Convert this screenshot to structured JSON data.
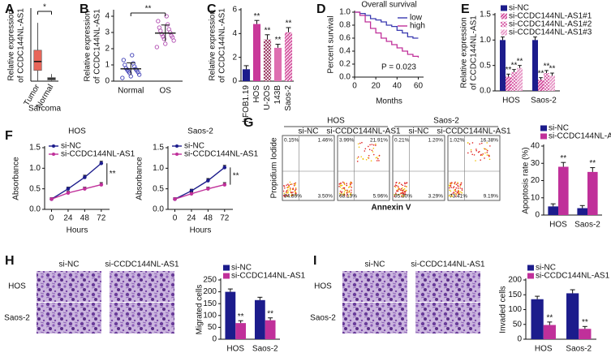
{
  "chart_data": [
    {
      "panel": "A",
      "type": "box",
      "ylabel": [
        "Relative expression",
        "of CCDC144NL-AS1"
      ],
      "xlabel": "Sarcoma",
      "categories": [
        "Tumor",
        "Normal"
      ],
      "colors": [
        "#e8665a",
        "#9e9e9e"
      ],
      "boxes": [
        {
          "min": 0,
          "q1": 1.8,
          "median": 3.3,
          "q3": 5.2,
          "max": 9.8
        },
        {
          "min": 0,
          "q1": 0.2,
          "median": 0.4,
          "q3": 0.6,
          "max": 1.2
        }
      ],
      "ylim": [
        0,
        12
      ],
      "annotation": "*"
    },
    {
      "panel": "B",
      "type": "dot",
      "ylabel": [
        "Relative expression",
        "of CCDC144NL-AS1"
      ],
      "categories": [
        "Normal",
        "OS"
      ],
      "colors": [
        "#3b3bb5",
        "#b04ab0"
      ],
      "points": [
        [
          0.2,
          0.3,
          0.4,
          0.5,
          0.55,
          0.6,
          0.65,
          0.7,
          0.75,
          0.8,
          0.9,
          1.0,
          1.1,
          1.3,
          1.6
        ],
        [
          2.1,
          2.3,
          2.5,
          2.6,
          2.7,
          2.75,
          2.8,
          2.9,
          3.0,
          3.1,
          3.2,
          3.3,
          3.5,
          3.7,
          4.0
        ]
      ],
      "values": [
        0.76,
        2.96
      ],
      "errors": [
        0.37,
        0.5
      ],
      "ylim": [
        0,
        4.3
      ],
      "yticks": [
        0,
        1,
        2,
        3,
        4
      ],
      "annotation": "**"
    },
    {
      "panel": "C",
      "type": "bar",
      "ylabel": [
        "Relative expression",
        "of CCDC144NL-AS1"
      ],
      "categories": [
        "hFOB1.19",
        "HOS",
        "U-2OS",
        "143B",
        "Saos-2"
      ],
      "series": [
        {
          "values": [
            1.0,
            4.8,
            3.5,
            2.8,
            4.1
          ],
          "errors": [
            0.3,
            0.3,
            0.4,
            0.3,
            0.4
          ],
          "colors": [
            "#1c1c8c",
            "#c9399a",
            "#8b1a4a",
            "#de6fb0",
            "#d65ba3"
          ],
          "hatch": [
            null,
            null,
            "cross",
            null,
            "diag"
          ],
          "annotations": [
            null,
            "**",
            "**",
            "**",
            "**"
          ]
        }
      ],
      "ylim": [
        0,
        6
      ],
      "yticks": [
        0,
        2,
        4,
        6
      ]
    },
    {
      "panel": "D",
      "type": "survival",
      "title": "Overall survival",
      "ylabel": "Percent survival",
      "xlabel": "Months",
      "xlim": [
        0,
        65
      ],
      "xticks": [
        0,
        20,
        40,
        60
      ],
      "ylim": [
        0,
        1
      ],
      "yticks": [
        {
          "value": 0,
          "label": "0.0"
        },
        0.2,
        0.4,
        0.6,
        0.8,
        {
          "value": 1,
          "label": "1.0"
        }
      ],
      "x": [
        0,
        5,
        10,
        15,
        20,
        25,
        30,
        35,
        40,
        45,
        50,
        55,
        60
      ],
      "series": [
        {
          "name": "low",
          "color": "#3a3ab0",
          "values": [
            1,
            0.98,
            0.95,
            0.9,
            0.88,
            0.85,
            0.8,
            0.78,
            0.72,
            0.68,
            0.62,
            0.6,
            0.6
          ]
        },
        {
          "name": "high",
          "color": "#c0309a",
          "values": [
            1,
            0.95,
            0.85,
            0.75,
            0.68,
            0.6,
            0.55,
            0.5,
            0.45,
            0.4,
            0.35,
            0.32,
            0.3
          ]
        }
      ],
      "annotation": "P = 0.023"
    },
    {
      "panel": "E",
      "type": "bar",
      "ylabel": [
        "Relative expression",
        "of CCDC144NL-AS1"
      ],
      "categories": [
        "HOS",
        "Saos-2"
      ],
      "series": [
        {
          "name": "si-NC",
          "color": "#1c1c8c",
          "hatch": null,
          "values": [
            1.0,
            1.0
          ],
          "errors": [
            0.06,
            0.06
          ]
        },
        {
          "name": "si-CCDC144NL-AS1#1",
          "color": "#d4509f",
          "hatch": "diag",
          "values": [
            0.28,
            0.22
          ],
          "errors": [
            0.05,
            0.04
          ],
          "annotations": [
            "**",
            "**"
          ]
        },
        {
          "name": "si-CCDC144NL-AS1#2",
          "color": "#d4509f",
          "hatch": "cross",
          "values": [
            0.37,
            0.35
          ],
          "errors": [
            0.05,
            0.05
          ],
          "annotations": [
            "**",
            "**"
          ]
        },
        {
          "name": "si-CCDC144NL-AS1#3",
          "color": "#e89ac8",
          "hatch": "diag",
          "values": [
            0.45,
            0.3
          ],
          "errors": [
            0.05,
            0.05
          ],
          "annotations": [
            "**",
            "**"
          ]
        }
      ],
      "ylim": [
        0,
        1.5
      ],
      "yticks": [
        {
          "value": 0,
          "label": "0.0"
        },
        0.5,
        {
          "value": 1,
          "label": "1.0"
        },
        1.5
      ]
    },
    {
      "panel": "F",
      "type": "line",
      "title": "HOS",
      "ylabel": "Absorbance",
      "xlabel": "Hours",
      "x": [
        0,
        24,
        48,
        72
      ],
      "xlim": [
        -10,
        84
      ],
      "xticks": [
        0,
        24,
        48,
        72
      ],
      "ylim": [
        0,
        1.5
      ],
      "yticks": [
        {
          "value": 0,
          "label": "0.0"
        },
        0.5,
        {
          "value": 1,
          "label": "1.0"
        },
        1.5
      ],
      "series": [
        {
          "name": "si-NC",
          "color": "#1c1c8c",
          "values": [
            0.25,
            0.5,
            0.78,
            1.12
          ],
          "errors": [
            0.03,
            0.04,
            0.05,
            0.05
          ]
        },
        {
          "name": "si-CCDC144NL-AS1",
          "color": "#c0309a",
          "values": [
            0.25,
            0.4,
            0.5,
            0.6
          ],
          "errors": [
            0.03,
            0.04,
            0.04,
            0.05
          ]
        }
      ],
      "annotation": "**"
    },
    {
      "type": "line",
      "title": "Saos-2",
      "ylabel": "Absorbance",
      "xlabel": "Hours",
      "x": [
        0,
        24,
        48,
        72
      ],
      "xlim": [
        -10,
        84
      ],
      "xticks": [
        0,
        24,
        48,
        72
      ],
      "ylim": [
        0,
        1.5
      ],
      "yticks": [
        {
          "value": 0,
          "label": "0.0"
        },
        0.5,
        {
          "value": 1,
          "label": "1.0"
        },
        1.5
      ],
      "series": [
        {
          "name": "si-NC",
          "color": "#1c1c8c",
          "values": [
            0.25,
            0.45,
            0.7,
            1.02
          ],
          "errors": [
            0.03,
            0.04,
            0.05,
            0.05
          ]
        },
        {
          "name": "si-CCDC144NL-AS1",
          "color": "#c0309a",
          "values": [
            0.25,
            0.38,
            0.5,
            0.6
          ],
          "errors": [
            0.03,
            0.04,
            0.04,
            0.05
          ]
        }
      ],
      "annotation": "**"
    },
    {
      "type": "bar",
      "ylabel": "Apoptosis rate (%)",
      "categories": [
        "HOS",
        "Saos-2"
      ],
      "series": [
        {
          "name": "si-NC",
          "color": "#1c1c8c",
          "values": [
            5,
            4
          ],
          "errors": [
            1.5,
            1.5
          ]
        },
        {
          "name": "si-CCDC144NL-AS1",
          "color": "#c0309a",
          "values": [
            28,
            25
          ],
          "errors": [
            2.5,
            2.5
          ],
          "annotations": [
            "**",
            "**"
          ]
        }
      ],
      "ylim": [
        0,
        40
      ],
      "yticks": [
        0,
        10,
        20,
        30,
        40
      ]
    },
    {
      "type": "bar",
      "ylabel": "Migrated cells",
      "categories": [
        "HOS",
        "Saos-2"
      ],
      "series": [
        {
          "name": "si-NC",
          "color": "#1c1c8c",
          "values": [
            200,
            165
          ],
          "errors": [
            12,
            12
          ]
        },
        {
          "name": "si-CCDC144NL-AS1",
          "color": "#c0309a",
          "values": [
            68,
            80
          ],
          "errors": [
            10,
            10
          ],
          "annotations": [
            "**",
            "**"
          ]
        }
      ],
      "ylim": [
        0,
        250
      ],
      "yticks": [
        0,
        50,
        100,
        150,
        200,
        250
      ]
    },
    {
      "type": "bar",
      "ylabel": "Invaded cells",
      "categories": [
        "HOS",
        "Saos-2"
      ],
      "series": [
        {
          "name": "si-NC",
          "color": "#1c1c8c",
          "values": [
            135,
            155
          ],
          "errors": [
            10,
            12
          ]
        },
        {
          "name": "si-CCDC144NL-AS1",
          "color": "#c0309a",
          "values": [
            48,
            35
          ],
          "errors": [
            10,
            8
          ],
          "annotations": [
            "**",
            "**"
          ]
        }
      ],
      "ylim": [
        0,
        200
      ],
      "yticks": [
        0,
        50,
        100,
        150,
        200
      ]
    }
  ],
  "flow": {
    "panel": "G",
    "groups": [
      "HOS",
      "Saos-2"
    ],
    "conditions": [
      "si-NC",
      "si-CCDC144NL-AS1",
      "si-NC",
      "si-CCDC144NL-AS1"
    ],
    "quadrants": [
      [
        "0.15%",
        "1.46%",
        "94.89%",
        "3.50%"
      ],
      [
        "3.99%",
        "21.91%",
        "68.13%",
        "5.96%"
      ],
      [
        "0.21%",
        "1.20%",
        "95.30%",
        "3.29%"
      ],
      [
        "1.02%",
        "16.38%",
        "73.41%",
        "9.19%"
      ]
    ],
    "ylabel": "Propidium Iodide",
    "xlabel": "Annexin V"
  },
  "micrographs": [
    {
      "panel": "H",
      "columns": [
        "si-NC",
        "si-CCDC144NL-AS1"
      ],
      "rows": [
        "HOS",
        "Saos-2"
      ]
    },
    {
      "panel": "I",
      "columns": [
        "si-NC",
        "si-CCDC144NL-AS1"
      ],
      "rows": [
        "HOS",
        "Saos-2"
      ]
    }
  ]
}
